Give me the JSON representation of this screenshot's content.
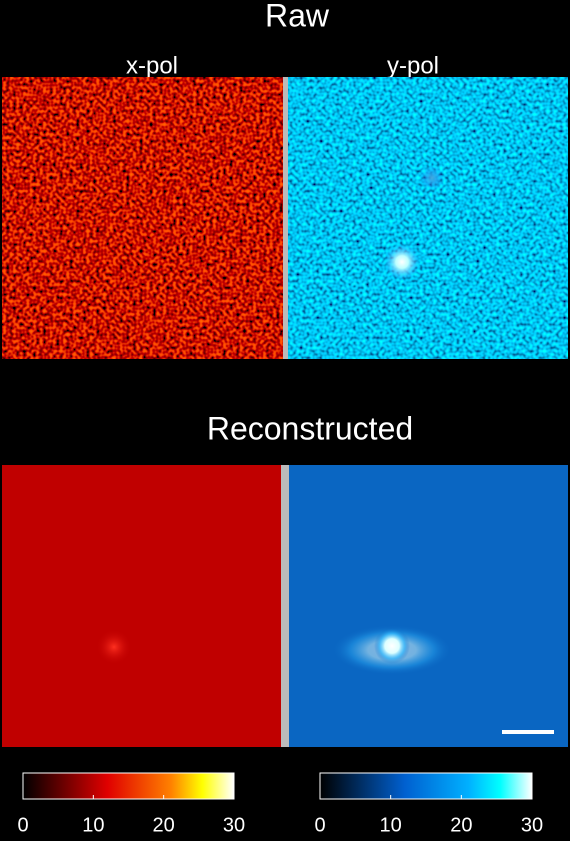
{
  "header": {
    "title": "Raw",
    "columns": [
      "x-pol",
      "y-pol"
    ]
  },
  "section2": {
    "title": "Reconstructed"
  },
  "colorbars": [
    {
      "lim": [
        0,
        30
      ],
      "ticks": [
        0,
        10,
        20,
        30
      ]
    },
    {
      "lim": [
        0,
        30
      ],
      "ticks": [
        0,
        10,
        20,
        30
      ]
    }
  ]
}
